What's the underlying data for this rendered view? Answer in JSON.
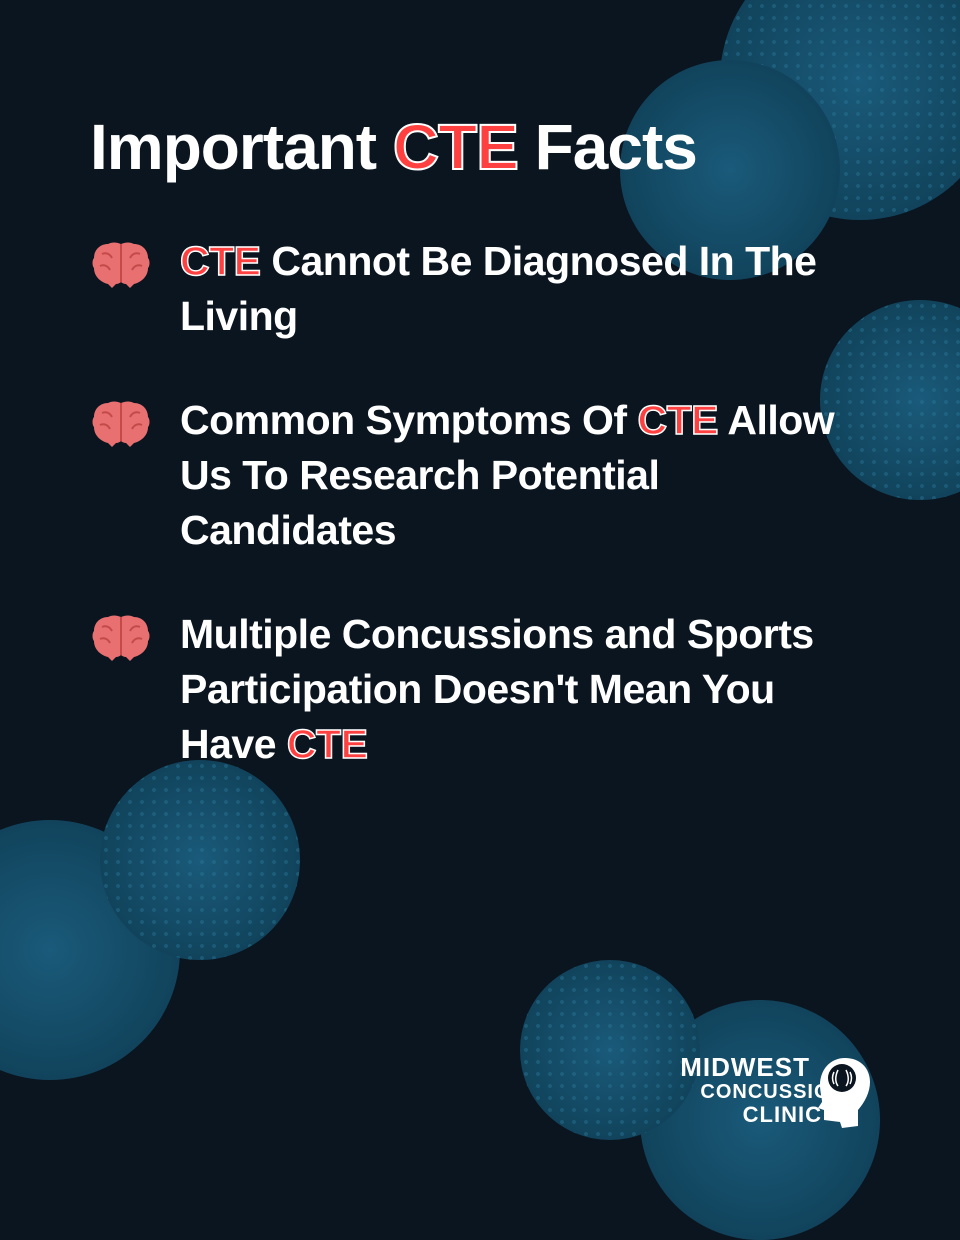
{
  "type": "infographic",
  "background_color": "#0a1520",
  "accent_color": "#ff4040",
  "text_color": "#ffffff",
  "circle_color": "#1a5a7a",
  "circle_dot_color": "#2a7a9a",
  "brain_color": "#e87070",
  "brain_dark": "#c44a4a",
  "title": {
    "pre": "Important ",
    "highlight": "CTE",
    "post": " Facts",
    "fontsize": 64
  },
  "facts": [
    {
      "parts": [
        {
          "text": "CTE",
          "highlight": true
        },
        {
          "text": " Cannot Be Diagnosed In The Living",
          "highlight": false
        }
      ]
    },
    {
      "parts": [
        {
          "text": "Common Symptoms Of ",
          "highlight": false
        },
        {
          "text": "CTE",
          "highlight": true
        },
        {
          "text": " Allow Us To Research Potential Candidates",
          "highlight": false
        }
      ]
    },
    {
      "parts": [
        {
          "text": "Multiple Concussions and Sports Participation Doesn't Mean You Have ",
          "highlight": false
        },
        {
          "text": "CTE",
          "highlight": true
        }
      ]
    }
  ],
  "fact_fontsize": 41,
  "logo": {
    "line1": "MIDWEST",
    "line2": "CONCUSSION",
    "line3": "CLINIC"
  }
}
